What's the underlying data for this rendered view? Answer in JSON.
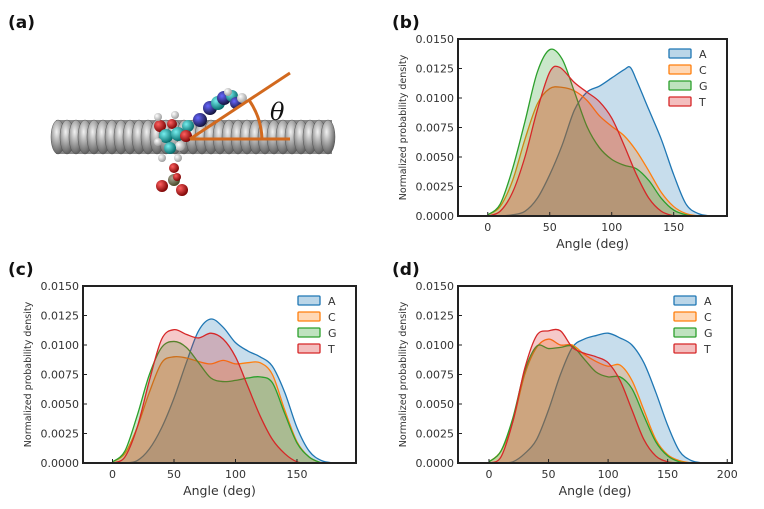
{
  "panel_labels": {
    "a": "(a)",
    "b": "(b)",
    "c": "(c)",
    "d": "(d)"
  },
  "schematic": {
    "angle_symbol": "θ",
    "line_color": "#d2691e"
  },
  "colors": {
    "A": "#1f77b4",
    "C": "#ff7f0e",
    "G": "#2ca02c",
    "T": "#d62728"
  },
  "chart_data": [
    {
      "id": "b",
      "type": "area",
      "xlabel": "Angle (deg)",
      "ylabel": "Normalized probability density",
      "xlim": [
        -24,
        193
      ],
      "ylim": [
        0,
        0.015
      ],
      "xticks": [
        0,
        50,
        100,
        150
      ],
      "yticks": [
        "0.0000",
        "0.0025",
        "0.0050",
        "0.0075",
        "0.0100",
        "0.0125",
        "0.0150"
      ],
      "legend": [
        "A",
        "C",
        "G",
        "T"
      ],
      "legend_position": "top-right",
      "series": [
        {
          "name": "A",
          "x": [
            0,
            10,
            20,
            30,
            40,
            50,
            60,
            70,
            80,
            90,
            100,
            110,
            115,
            120,
            130,
            140,
            150,
            160,
            170,
            180
          ],
          "y": [
            0,
            0,
            0.0001,
            0.0004,
            0.0015,
            0.0035,
            0.006,
            0.009,
            0.0105,
            0.011,
            0.0117,
            0.0124,
            0.0126,
            0.0115,
            0.009,
            0.0065,
            0.0035,
            0.001,
            0.0002,
            0
          ]
        },
        {
          "name": "C",
          "x": [
            0,
            10,
            20,
            30,
            40,
            50,
            60,
            70,
            80,
            90,
            100,
            110,
            120,
            130,
            140,
            150,
            160,
            170
          ],
          "y": [
            0.0001,
            0.0008,
            0.003,
            0.0065,
            0.0095,
            0.0108,
            0.0109,
            0.0106,
            0.0098,
            0.0085,
            0.0076,
            0.0068,
            0.0055,
            0.0038,
            0.002,
            0.0008,
            0.0002,
            0
          ]
        },
        {
          "name": "G",
          "x": [
            0,
            10,
            20,
            30,
            40,
            50,
            60,
            70,
            80,
            90,
            100,
            110,
            120,
            130,
            140,
            150,
            160,
            170
          ],
          "y": [
            0.0001,
            0.001,
            0.004,
            0.008,
            0.0122,
            0.0141,
            0.0133,
            0.0105,
            0.0076,
            0.0058,
            0.0048,
            0.0043,
            0.004,
            0.003,
            0.0015,
            0.0005,
            0.0001,
            0
          ]
        },
        {
          "name": "T",
          "x": [
            0,
            10,
            20,
            30,
            40,
            50,
            58,
            70,
            80,
            90,
            100,
            110,
            120,
            130,
            140,
            150
          ],
          "y": [
            0,
            0.0004,
            0.002,
            0.005,
            0.009,
            0.0122,
            0.0126,
            0.0113,
            0.0105,
            0.0097,
            0.0083,
            0.006,
            0.0035,
            0.0015,
            0.0004,
            0
          ]
        }
      ]
    },
    {
      "id": "c",
      "type": "area",
      "xlabel": "Angle (deg)",
      "ylabel": "Normalized probability density",
      "xlim": [
        -24,
        198
      ],
      "ylim": [
        0,
        0.015
      ],
      "xticks": [
        0,
        50,
        100,
        150
      ],
      "yticks": [
        "0.0000",
        "0.0025",
        "0.0050",
        "0.0075",
        "0.0100",
        "0.0125",
        "0.0150"
      ],
      "legend": [
        "A",
        "C",
        "G",
        "T"
      ],
      "legend_position": "top-right",
      "series": [
        {
          "name": "A",
          "x": [
            10,
            20,
            30,
            40,
            50,
            60,
            70,
            80,
            90,
            100,
            110,
            120,
            130,
            140,
            150,
            160,
            170,
            180
          ],
          "y": [
            0,
            0.0002,
            0.0012,
            0.003,
            0.0055,
            0.0085,
            0.0112,
            0.0122,
            0.0115,
            0.0102,
            0.0095,
            0.009,
            0.0082,
            0.006,
            0.003,
            0.001,
            0.0002,
            0
          ]
        },
        {
          "name": "C",
          "x": [
            0,
            10,
            20,
            30,
            40,
            50,
            60,
            70,
            80,
            90,
            100,
            110,
            120,
            130,
            140,
            150,
            160,
            170
          ],
          "y": [
            0.0001,
            0.0008,
            0.003,
            0.006,
            0.0085,
            0.009,
            0.0089,
            0.0086,
            0.0084,
            0.0087,
            0.0084,
            0.0085,
            0.0085,
            0.0075,
            0.0045,
            0.0018,
            0.0005,
            0
          ]
        },
        {
          "name": "G",
          "x": [
            0,
            10,
            20,
            30,
            40,
            50,
            60,
            70,
            80,
            90,
            100,
            110,
            120,
            130,
            140,
            150,
            160,
            170
          ],
          "y": [
            0.0001,
            0.001,
            0.004,
            0.0075,
            0.0098,
            0.0103,
            0.0098,
            0.0085,
            0.0072,
            0.0069,
            0.007,
            0.0072,
            0.0073,
            0.0068,
            0.0042,
            0.0017,
            0.0005,
            0
          ]
        },
        {
          "name": "T",
          "x": [
            0,
            10,
            20,
            30,
            40,
            50,
            60,
            70,
            80,
            90,
            100,
            110,
            120,
            130,
            140,
            150,
            160
          ],
          "y": [
            0,
            0.0005,
            0.003,
            0.007,
            0.0105,
            0.0113,
            0.0109,
            0.0106,
            0.011,
            0.0105,
            0.009,
            0.0065,
            0.004,
            0.002,
            0.0008,
            0.0001,
            0
          ]
        }
      ]
    },
    {
      "id": "d",
      "type": "area",
      "xlabel": "Angle (deg)",
      "ylabel": "Normalized probability density",
      "xlim": [
        -26,
        204
      ],
      "ylim": [
        0,
        0.015
      ],
      "xticks": [
        0,
        50,
        100,
        150,
        200
      ],
      "yticks": [
        "0.0000",
        "0.0025",
        "0.0050",
        "0.0075",
        "0.0100",
        "0.0125",
        "0.0150"
      ],
      "legend": [
        "A",
        "C",
        "G",
        "T"
      ],
      "legend_position": "top-right",
      "series": [
        {
          "name": "A",
          "x": [
            10,
            20,
            30,
            40,
            50,
            60,
            70,
            80,
            90,
            100,
            110,
            120,
            130,
            140,
            150,
            160,
            170,
            180
          ],
          "y": [
            0,
            0.0001,
            0.0008,
            0.002,
            0.0045,
            0.0075,
            0.0098,
            0.0105,
            0.0108,
            0.011,
            0.0106,
            0.01,
            0.0085,
            0.006,
            0.0032,
            0.001,
            0.0002,
            0
          ]
        },
        {
          "name": "C",
          "x": [
            0,
            10,
            20,
            30,
            40,
            50,
            60,
            70,
            80,
            90,
            100,
            110,
            120,
            130,
            140,
            150,
            160,
            170
          ],
          "y": [
            0.0001,
            0.001,
            0.0035,
            0.0075,
            0.0098,
            0.0105,
            0.01,
            0.01,
            0.0092,
            0.0086,
            0.0082,
            0.0083,
            0.007,
            0.0045,
            0.002,
            0.0007,
            0.0002,
            0
          ]
        },
        {
          "name": "G",
          "x": [
            0,
            10,
            20,
            30,
            40,
            50,
            60,
            70,
            80,
            90,
            100,
            110,
            120,
            130,
            140,
            150,
            160,
            170
          ],
          "y": [
            0.0001,
            0.001,
            0.0038,
            0.0078,
            0.0099,
            0.0097,
            0.0098,
            0.0099,
            0.0088,
            0.0077,
            0.0073,
            0.0073,
            0.0063,
            0.004,
            0.0018,
            0.0006,
            0.0001,
            0
          ]
        },
        {
          "name": "T",
          "x": [
            0,
            10,
            20,
            30,
            40,
            50,
            60,
            70,
            80,
            90,
            100,
            110,
            120,
            130,
            140,
            150,
            160
          ],
          "y": [
            0,
            0.0005,
            0.0035,
            0.008,
            0.0108,
            0.0112,
            0.0112,
            0.0098,
            0.0093,
            0.009,
            0.0085,
            0.007,
            0.0045,
            0.002,
            0.0006,
            0.0001,
            0
          ]
        }
      ]
    }
  ]
}
